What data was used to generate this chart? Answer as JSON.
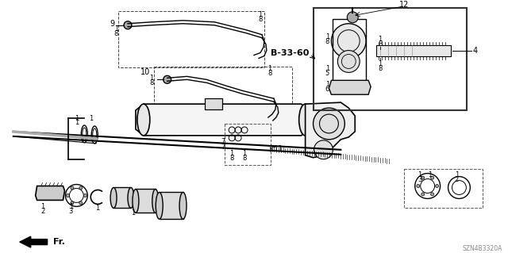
{
  "bg_color": "#ffffff",
  "line_color": "#000000",
  "diagram_code": "SZN4B3320A",
  "font_size": 6,
  "inset_label": "B-33-60"
}
